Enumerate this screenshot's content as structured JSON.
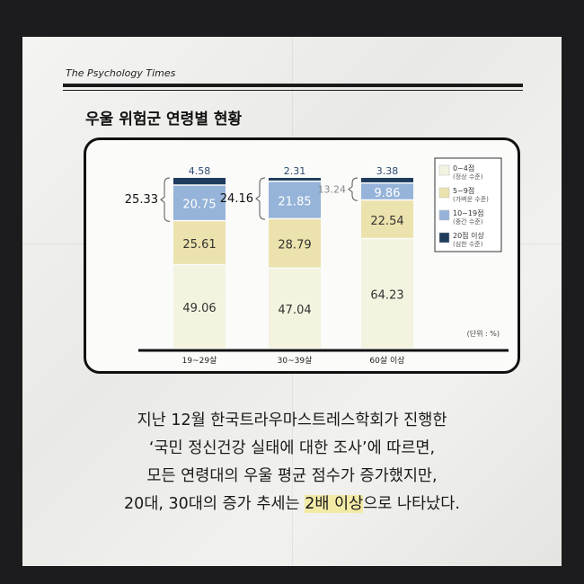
{
  "brand": "The Psychology Times",
  "heading": "우울 위험군 연령별 현황",
  "chart_data": {
    "type": "bar",
    "stacked": true,
    "categories": [
      "19~29살",
      "30~39살",
      "60살 이상"
    ],
    "series": [
      {
        "name": "0~4점",
        "sub": "(정상 수준)",
        "color": "#f3f3e0",
        "values": [
          49.06,
          47.04,
          64.23
        ]
      },
      {
        "name": "5~9점",
        "sub": "(가벼운 수준)",
        "color": "#ece2ad",
        "values": [
          25.61,
          28.79,
          22.54
        ]
      },
      {
        "name": "10~19점",
        "sub": "(중간 수준)",
        "color": "#96b3d9",
        "values": [
          20.75,
          21.85,
          9.86
        ]
      },
      {
        "name": "20점 이상",
        "sub": "(심한 수준)",
        "color": "#1f3c5c",
        "values": [
          4.58,
          2.31,
          3.38
        ]
      }
    ],
    "bracket_totals": [
      "25.33",
      "24.16",
      "13.24"
    ],
    "unit": "(단위 : %)",
    "legend": "right",
    "ylim": [
      0,
      100
    ]
  },
  "body": {
    "line1": "지난 12월 한국트라우마스트레스학회가 진행한",
    "line2": "‘국민 정신건강 실태에 대한 조사’에 따르면,",
    "line3": "모든 연령대의 우울 평균 점수가 증가했지만,",
    "line4_pre": "20대, 30대의 증가 추세는 ",
    "line4_hl": "2배 이상",
    "line4_post": "으로 나타났다."
  }
}
